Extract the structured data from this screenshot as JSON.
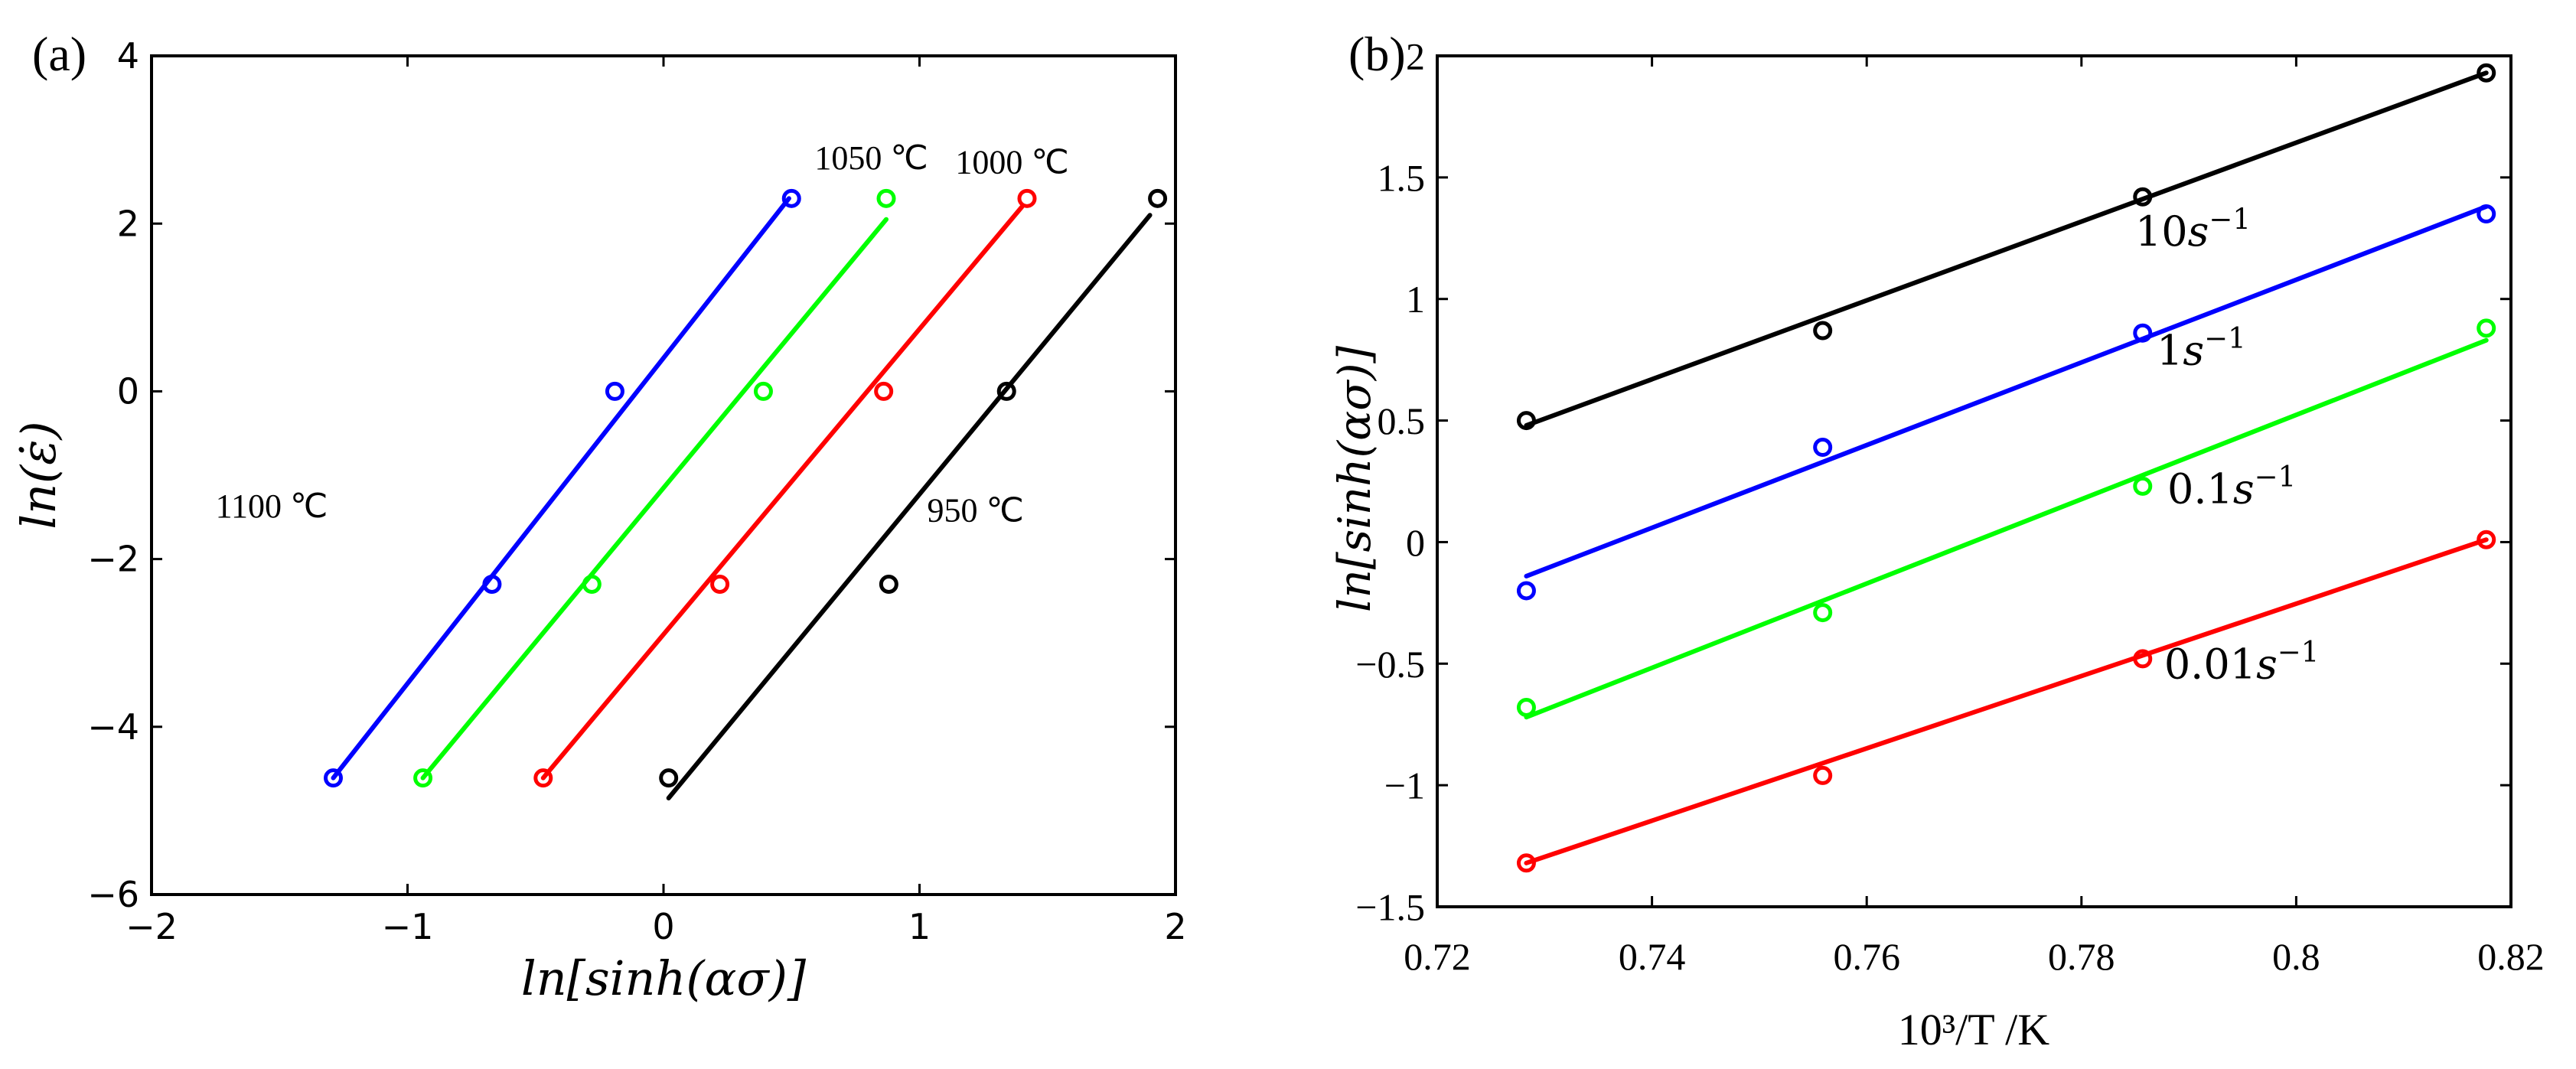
{
  "chart_data": [
    {
      "panel_label": "(a)",
      "type": "scatter",
      "xlabel": "ln[sinh(ασ)]",
      "ylabel": "ln(ε̇)",
      "xlim": [
        -2,
        2
      ],
      "ylim": [
        -6,
        4
      ],
      "xticks": [
        -2,
        -1,
        0,
        1,
        2
      ],
      "xtick_labels": [
        "−2",
        "−1",
        "0",
        "1",
        "2"
      ],
      "yticks": [
        -6,
        -4,
        -2,
        0,
        2,
        4
      ],
      "ytick_labels": [
        "−6",
        "−4",
        "−2",
        "0",
        "2",
        "4"
      ],
      "grid": false,
      "series": [
        {
          "name": "1100 ℃",
          "color": "#0000ff",
          "label_text": "1100 ℃",
          "label_anchor": [
            -1.75,
            -1.5
          ],
          "points": [
            {
              "x": -1.29,
              "y": -4.61
            },
            {
              "x": -0.67,
              "y": -2.3
            },
            {
              "x": -0.19,
              "y": 0.0
            },
            {
              "x": 0.5,
              "y": 2.3
            }
          ],
          "fit": [
            [
              -1.29,
              -4.61
            ],
            [
              0.49,
              2.3
            ]
          ]
        },
        {
          "name": "1050 ℃",
          "color": "#00ff00",
          "label_text": "1050 ℃",
          "label_anchor": [
            0.59,
            2.65
          ],
          "points": [
            {
              "x": -0.94,
              "y": -4.61
            },
            {
              "x": -0.28,
              "y": -2.3
            },
            {
              "x": 0.39,
              "y": 0.0
            },
            {
              "x": 0.87,
              "y": 2.3
            }
          ],
          "fit": [
            [
              -0.94,
              -4.61
            ],
            [
              0.87,
              2.05
            ]
          ]
        },
        {
          "name": "1000 ℃",
          "color": "#ff0000",
          "label_text": "1000 ℃",
          "label_anchor": [
            1.14,
            2.6
          ],
          "points": [
            {
              "x": -0.47,
              "y": -4.61
            },
            {
              "x": 0.22,
              "y": -2.3
            },
            {
              "x": 0.86,
              "y": 0.0
            },
            {
              "x": 1.42,
              "y": 2.3
            }
          ],
          "fit": [
            [
              -0.47,
              -4.61
            ],
            [
              1.4,
              2.2
            ]
          ]
        },
        {
          "name": "950 ℃",
          "color": "#000000",
          "label_text": "950 ℃",
          "label_anchor": [
            1.03,
            -1.55
          ],
          "points": [
            {
              "x": 0.02,
              "y": -4.61
            },
            {
              "x": 0.88,
              "y": -2.3
            },
            {
              "x": 1.34,
              "y": 0.0
            },
            {
              "x": 1.93,
              "y": 2.3
            }
          ],
          "fit": [
            [
              0.02,
              -4.85
            ],
            [
              1.9,
              2.1
            ]
          ]
        }
      ]
    },
    {
      "panel_label": "(b)",
      "type": "scatter",
      "xlabel": "10³/T /K",
      "ylabel": "ln[sinh(ασ)]",
      "xlim": [
        0.72,
        0.82
      ],
      "ylim": [
        -1.5,
        2
      ],
      "xticks": [
        0.72,
        0.74,
        0.76,
        0.78,
        0.8,
        0.82
      ],
      "xtick_labels": [
        "0.72",
        "0.74",
        "0.76",
        "0.78",
        "0.8",
        "0.82"
      ],
      "yticks": [
        -1.5,
        -1,
        -0.5,
        0,
        0.5,
        1,
        1.5,
        2
      ],
      "ytick_labels": [
        "−1.5",
        "−1",
        "−0.5",
        "0",
        "0.5",
        "1",
        "1.5",
        "2"
      ],
      "grid": false,
      "series": [
        {
          "name": "10s⁻¹",
          "color": "#000000",
          "label_base": "10",
          "label_exp": "−1",
          "label_anchor": [
            0.785,
            1.22
          ],
          "points": [
            {
              "x": 0.7283,
              "y": 0.5
            },
            {
              "x": 0.7559,
              "y": 0.87
            },
            {
              "x": 0.7857,
              "y": 1.42
            },
            {
              "x": 0.8177,
              "y": 1.93
            }
          ],
          "fit": [
            [
              0.7283,
              0.48
            ],
            [
              0.8177,
              1.93
            ]
          ]
        },
        {
          "name": "1s⁻¹",
          "color": "#0000ff",
          "label_base": "1",
          "label_exp": "−1",
          "label_anchor": [
            0.787,
            0.73
          ],
          "points": [
            {
              "x": 0.7283,
              "y": -0.2
            },
            {
              "x": 0.7559,
              "y": 0.39
            },
            {
              "x": 0.7857,
              "y": 0.86
            },
            {
              "x": 0.8177,
              "y": 1.35
            }
          ],
          "fit": [
            [
              0.7283,
              -0.14
            ],
            [
              0.8177,
              1.38
            ]
          ]
        },
        {
          "name": "0.1s⁻¹",
          "color": "#00ff00",
          "label_base": "0.1",
          "label_exp": "−1",
          "label_anchor": [
            0.788,
            0.16
          ],
          "points": [
            {
              "x": 0.7283,
              "y": -0.68
            },
            {
              "x": 0.7559,
              "y": -0.29
            },
            {
              "x": 0.7857,
              "y": 0.23
            },
            {
              "x": 0.8177,
              "y": 0.88
            }
          ],
          "fit": [
            [
              0.7283,
              -0.72
            ],
            [
              0.8177,
              0.83
            ]
          ]
        },
        {
          "name": "0.01s⁻¹",
          "color": "#ff0000",
          "label_base": "0.01",
          "label_exp": "−1",
          "label_anchor": [
            0.7877,
            -0.56
          ],
          "points": [
            {
              "x": 0.7283,
              "y": -1.32
            },
            {
              "x": 0.7559,
              "y": -0.96
            },
            {
              "x": 0.7857,
              "y": -0.48
            },
            {
              "x": 0.8177,
              "y": 0.01
            }
          ],
          "fit": [
            [
              0.7283,
              -1.32
            ],
            [
              0.8177,
              0.01
            ]
          ]
        }
      ]
    }
  ]
}
